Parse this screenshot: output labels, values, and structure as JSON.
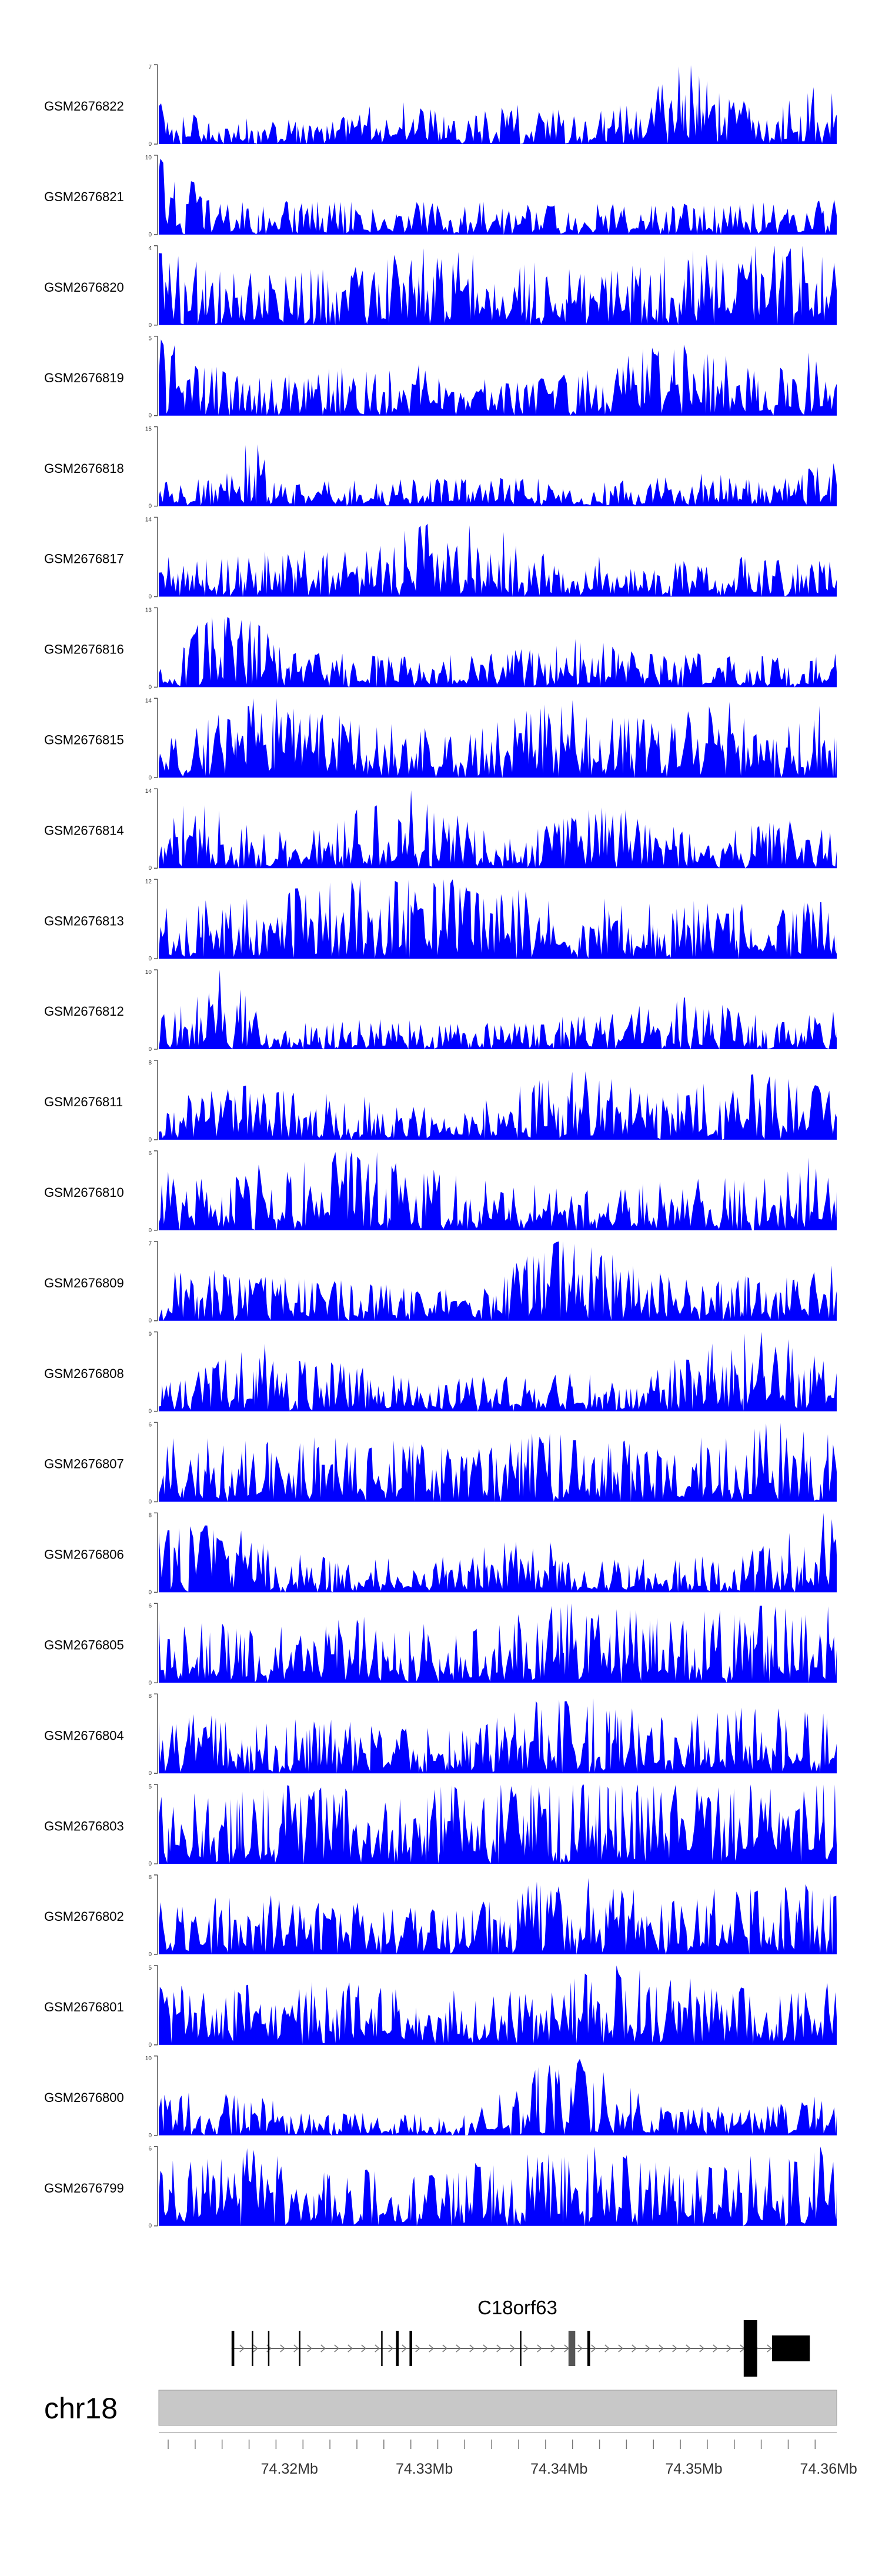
{
  "chart_data": {
    "type": "area",
    "title": "",
    "chromosome": "chr18",
    "gene": "C18orf63",
    "xlabel": "",
    "xlim": [
      74.3103,
      74.3606
    ],
    "x_ticks": [
      "74.32Mb",
      "74.33Mb",
      "74.34Mb",
      "74.35Mb",
      "74.36Mb"
    ],
    "x_tick_values": [
      74.32,
      74.33,
      74.34,
      74.35,
      74.36
    ],
    "colors": {
      "track_fill": "#0000ff",
      "axis": "#555555",
      "ideogram": "#c8c8c8",
      "gene": "#000000"
    },
    "series": [
      {
        "name": "GSM2676822",
        "ymax": "7",
        "ylim": [
          0,
          7
        ],
        "profile": [
          [
            0,
            3.2
          ],
          [
            0.08,
            1.8
          ],
          [
            0.16,
            2.2
          ],
          [
            0.24,
            1.5
          ],
          [
            0.34,
            3.5
          ],
          [
            0.44,
            2.2
          ],
          [
            0.56,
            3.3
          ],
          [
            0.66,
            2.5
          ],
          [
            0.77,
            6.6
          ],
          [
            0.88,
            2.8
          ],
          [
            1,
            5.2
          ]
        ]
      },
      {
        "name": "GSM2676821",
        "ymax": "10",
        "ylim": [
          0,
          10
        ],
        "profile": [
          [
            0,
            8.5
          ],
          [
            0.1,
            3.5
          ],
          [
            0.2,
            4
          ],
          [
            0.32,
            3.5
          ],
          [
            0.45,
            3.8
          ],
          [
            0.56,
            3.2
          ],
          [
            0.68,
            3.5
          ],
          [
            0.8,
            3.4
          ],
          [
            0.92,
            3.6
          ],
          [
            1,
            4.8
          ]
        ]
      },
      {
        "name": "GSM2676820",
        "ymax": "4",
        "ylim": [
          0,
          4
        ],
        "profile": [
          [
            0,
            3.2
          ],
          [
            0.12,
            2.8
          ],
          [
            0.26,
            2.5
          ],
          [
            0.4,
            3.6
          ],
          [
            0.52,
            3
          ],
          [
            0.65,
            2.4
          ],
          [
            0.78,
            3.3
          ],
          [
            0.9,
            3.8
          ],
          [
            1,
            3.5
          ]
        ]
      },
      {
        "name": "GSM2676819",
        "ymax": "5",
        "ylim": [
          0,
          5
        ],
        "profile": [
          [
            0,
            4.3
          ],
          [
            0.12,
            2.2
          ],
          [
            0.25,
            2.6
          ],
          [
            0.38,
            3
          ],
          [
            0.5,
            2.2
          ],
          [
            0.62,
            2.4
          ],
          [
            0.75,
            4.2
          ],
          [
            0.88,
            3
          ],
          [
            1,
            4
          ]
        ]
      },
      {
        "name": "GSM2676818",
        "ymax": "15",
        "ylim": [
          0,
          15
        ],
        "profile": [
          [
            0,
            4
          ],
          [
            0.1,
            5
          ],
          [
            0.11,
            14.5
          ],
          [
            0.2,
            4
          ],
          [
            0.35,
            4.5
          ],
          [
            0.5,
            5
          ],
          [
            0.65,
            4
          ],
          [
            0.8,
            5.5
          ],
          [
            0.92,
            4.5
          ],
          [
            1,
            8
          ]
        ]
      },
      {
        "name": "GSM2676817",
        "ymax": "14",
        "ylim": [
          0,
          14
        ],
        "profile": [
          [
            0,
            6
          ],
          [
            0.15,
            7
          ],
          [
            0.3,
            8
          ],
          [
            0.43,
            13.5
          ],
          [
            0.55,
            8.5
          ],
          [
            0.7,
            5
          ],
          [
            0.82,
            6
          ],
          [
            0.95,
            6.5
          ],
          [
            1,
            6
          ]
        ]
      },
      {
        "name": "GSM2676816",
        "ymax": "13",
        "ylim": [
          0,
          13
        ],
        "profile": [
          [
            0,
            4
          ],
          [
            0.1,
            12.5
          ],
          [
            0.2,
            5
          ],
          [
            0.35,
            4.5
          ],
          [
            0.5,
            5
          ],
          [
            0.62,
            7
          ],
          [
            0.75,
            5
          ],
          [
            0.9,
            4.5
          ],
          [
            1,
            5
          ]
        ]
      },
      {
        "name": "GSM2676815",
        "ymax": "14",
        "ylim": [
          0,
          14
        ],
        "profile": [
          [
            0,
            6
          ],
          [
            0.15,
            13
          ],
          [
            0.3,
            9
          ],
          [
            0.45,
            7
          ],
          [
            0.58,
            13.5
          ],
          [
            0.72,
            9
          ],
          [
            0.84,
            12
          ],
          [
            0.92,
            10
          ],
          [
            1,
            13.5
          ]
        ]
      },
      {
        "name": "GSM2676814",
        "ymax": "14",
        "ylim": [
          0,
          14
        ],
        "profile": [
          [
            0,
            5
          ],
          [
            0.04,
            11
          ],
          [
            0.2,
            5
          ],
          [
            0.37,
            13
          ],
          [
            0.5,
            5
          ],
          [
            0.65,
            10.5
          ],
          [
            0.8,
            5.5
          ],
          [
            0.95,
            8
          ],
          [
            1,
            6
          ]
        ]
      },
      {
        "name": "GSM2676813",
        "ymax": "12",
        "ylim": [
          0,
          12
        ],
        "profile": [
          [
            0,
            7
          ],
          [
            0.15,
            8.5
          ],
          [
            0.3,
            11
          ],
          [
            0.42,
            11.5
          ],
          [
            0.55,
            9
          ],
          [
            0.7,
            8
          ],
          [
            0.85,
            7.5
          ],
          [
            1,
            7.5
          ]
        ]
      },
      {
        "name": "GSM2676812",
        "ymax": "10",
        "ylim": [
          0,
          10
        ],
        "profile": [
          [
            0,
            4
          ],
          [
            0.1,
            9.5
          ],
          [
            0.2,
            3
          ],
          [
            0.35,
            3.5
          ],
          [
            0.5,
            3
          ],
          [
            0.65,
            4
          ],
          [
            0.8,
            6
          ],
          [
            0.9,
            3.5
          ],
          [
            1,
            5
          ]
        ]
      },
      {
        "name": "GSM2676811",
        "ymax": "8",
        "ylim": [
          0,
          8
        ],
        "profile": [
          [
            0,
            3.5
          ],
          [
            0.15,
            5
          ],
          [
            0.3,
            4
          ],
          [
            0.45,
            3
          ],
          [
            0.6,
            6.5
          ],
          [
            0.75,
            4
          ],
          [
            0.88,
            7.8
          ],
          [
            1,
            4.5
          ]
        ]
      },
      {
        "name": "GSM2676810",
        "ymax": "6",
        "ylim": [
          0,
          6
        ],
        "profile": [
          [
            0,
            4
          ],
          [
            0.15,
            4.5
          ],
          [
            0.3,
            5.5
          ],
          [
            0.45,
            3.5
          ],
          [
            0.6,
            3
          ],
          [
            0.75,
            3.5
          ],
          [
            0.9,
            3.5
          ],
          [
            1,
            5.8
          ]
        ]
      },
      {
        "name": "GSM2676809",
        "ymax": "7",
        "ylim": [
          0,
          7
        ],
        "profile": [
          [
            0,
            4.5
          ],
          [
            0.15,
            3.5
          ],
          [
            0.3,
            3
          ],
          [
            0.45,
            2.5
          ],
          [
            0.6,
            6.8
          ],
          [
            0.75,
            3.5
          ],
          [
            0.9,
            3.5
          ],
          [
            1,
            4.5
          ]
        ]
      },
      {
        "name": "GSM2676808",
        "ymax": "9",
        "ylim": [
          0,
          9
        ],
        "profile": [
          [
            0,
            2.5
          ],
          [
            0.15,
            7
          ],
          [
            0.25,
            5
          ],
          [
            0.4,
            3
          ],
          [
            0.55,
            4
          ],
          [
            0.7,
            3.5
          ],
          [
            0.88,
            8.5
          ],
          [
            1,
            6
          ]
        ]
      },
      {
        "name": "GSM2676807",
        "ymax": "6",
        "ylim": [
          0,
          6
        ],
        "profile": [
          [
            0,
            4.5
          ],
          [
            0.15,
            4
          ],
          [
            0.3,
            4.5
          ],
          [
            0.45,
            3.5
          ],
          [
            0.6,
            5
          ],
          [
            0.75,
            3.5
          ],
          [
            0.9,
            5.8
          ],
          [
            1,
            4.5
          ]
        ]
      },
      {
        "name": "GSM2676806",
        "ymax": "8",
        "ylim": [
          0,
          8
        ],
        "profile": [
          [
            0,
            7
          ],
          [
            0.1,
            6
          ],
          [
            0.25,
            3
          ],
          [
            0.4,
            3
          ],
          [
            0.55,
            5
          ],
          [
            0.7,
            3
          ],
          [
            0.85,
            3.5
          ],
          [
            1,
            7.5
          ]
        ]
      },
      {
        "name": "GSM2676805",
        "ymax": "6",
        "ylim": [
          0,
          6
        ],
        "profile": [
          [
            0,
            4.5
          ],
          [
            0.15,
            4
          ],
          [
            0.3,
            4.5
          ],
          [
            0.45,
            3.5
          ],
          [
            0.6,
            5.5
          ],
          [
            0.75,
            4.5
          ],
          [
            0.88,
            5.5
          ],
          [
            1,
            5
          ]
        ]
      },
      {
        "name": "GSM2676804",
        "ymax": "8",
        "ylim": [
          0,
          8
        ],
        "profile": [
          [
            0,
            5.5
          ],
          [
            0.15,
            5
          ],
          [
            0.3,
            5
          ],
          [
            0.45,
            4
          ],
          [
            0.6,
            7.5
          ],
          [
            0.75,
            5
          ],
          [
            0.88,
            6
          ],
          [
            1,
            6
          ]
        ]
      },
      {
        "name": "GSM2676803",
        "ymax": "5",
        "ylim": [
          0,
          5
        ],
        "profile": [
          [
            0,
            4
          ],
          [
            0.15,
            4.5
          ],
          [
            0.3,
            4.2
          ],
          [
            0.45,
            4.5
          ],
          [
            0.6,
            4.8
          ],
          [
            0.75,
            4.5
          ],
          [
            0.88,
            4.5
          ],
          [
            1,
            4.8
          ]
        ]
      },
      {
        "name": "GSM2676802",
        "ymax": "8",
        "ylim": [
          0,
          8
        ],
        "profile": [
          [
            0,
            5
          ],
          [
            0.15,
            5.5
          ],
          [
            0.3,
            4.5
          ],
          [
            0.45,
            4
          ],
          [
            0.6,
            7.5
          ],
          [
            0.75,
            5
          ],
          [
            0.88,
            6.5
          ],
          [
            1,
            6
          ]
        ]
      },
      {
        "name": "GSM2676801",
        "ymax": "5",
        "ylim": [
          0,
          5
        ],
        "profile": [
          [
            0,
            3.5
          ],
          [
            0.15,
            3.5
          ],
          [
            0.3,
            3.5
          ],
          [
            0.45,
            3
          ],
          [
            0.6,
            3.5
          ],
          [
            0.67,
            4.8
          ],
          [
            0.8,
            3.5
          ],
          [
            1,
            3.5
          ]
        ]
      },
      {
        "name": "GSM2676800",
        "ymax": "10",
        "ylim": [
          0,
          10
        ],
        "profile": [
          [
            0,
            4.5
          ],
          [
            0.1,
            5
          ],
          [
            0.25,
            2.5
          ],
          [
            0.45,
            2.5
          ],
          [
            0.6,
            9.5
          ],
          [
            0.75,
            3
          ],
          [
            0.9,
            3.5
          ],
          [
            1,
            5
          ]
        ]
      },
      {
        "name": "GSM2676799",
        "ymax": "6",
        "ylim": [
          0,
          6
        ],
        "profile": [
          [
            0,
            4
          ],
          [
            0.1,
            5.5
          ],
          [
            0.25,
            4
          ],
          [
            0.4,
            3.5
          ],
          [
            0.6,
            5.8
          ],
          [
            0.75,
            4
          ],
          [
            0.88,
            5
          ],
          [
            1,
            5.5
          ]
        ]
      }
    ],
    "gene_model": {
      "start": 74.3157,
      "end": 74.3586,
      "exons": [
        [
          74.3157,
          74.3159
        ],
        [
          74.3172,
          74.3173
        ],
        [
          74.3184,
          74.3185
        ],
        [
          74.3207,
          74.3208
        ],
        [
          74.3268,
          74.3269
        ],
        [
          74.3279,
          74.3281
        ],
        [
          74.3289,
          74.3291
        ],
        [
          74.3371,
          74.3372
        ],
        [
          74.3407,
          74.3412
        ],
        [
          74.3421,
          74.3423
        ],
        [
          74.3537,
          74.3547
        ],
        [
          74.3558,
          74.3586
        ]
      ],
      "strand": "+"
    }
  }
}
